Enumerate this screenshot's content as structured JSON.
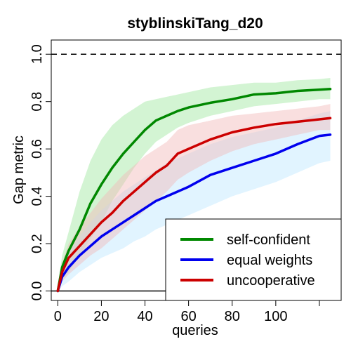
{
  "chart_data": {
    "type": "line",
    "title": "styblinskiTang_d20",
    "xlabel": "queries",
    "ylabel": "Gap metric",
    "xlim": [
      -3,
      130
    ],
    "ylim": [
      -0.04,
      1.06
    ],
    "xticks": [
      0,
      20,
      40,
      60,
      80,
      100
    ],
    "xtick_labels": [
      "0",
      "20",
      "40",
      "60",
      "80",
      "100"
    ],
    "xtick_extra_marks": [
      120
    ],
    "yticks": [
      0.0,
      0.2,
      0.4,
      0.6,
      0.8,
      1.0
    ],
    "ytick_labels": [
      "0.0",
      "0.2",
      "0.4",
      "0.6",
      "0.8",
      "1.0"
    ],
    "reference_lines": [
      {
        "y": 1.0,
        "style": "dashed",
        "color": "#000000"
      },
      {
        "y": 0.0,
        "style": "solid",
        "color": "#000000"
      }
    ],
    "legend_position": "bottom-right",
    "series": [
      {
        "name": "self-confident",
        "color": "#008800",
        "band_color": "#9ee69e",
        "x": [
          0,
          2,
          5,
          10,
          15,
          20,
          25,
          30,
          35,
          40,
          45,
          50,
          55,
          60,
          70,
          80,
          90,
          100,
          110,
          120,
          125
        ],
        "y": [
          0.0,
          0.1,
          0.17,
          0.26,
          0.37,
          0.45,
          0.52,
          0.58,
          0.63,
          0.68,
          0.72,
          0.74,
          0.76,
          0.775,
          0.795,
          0.81,
          0.83,
          0.835,
          0.845,
          0.85,
          0.853
        ],
        "lower": [
          0.0,
          0.05,
          0.08,
          0.15,
          0.22,
          0.29,
          0.38,
          0.45,
          0.52,
          0.58,
          0.63,
          0.66,
          0.69,
          0.71,
          0.74,
          0.76,
          0.78,
          0.79,
          0.8,
          0.81,
          0.81
        ],
        "upper": [
          0.02,
          0.15,
          0.25,
          0.42,
          0.55,
          0.64,
          0.7,
          0.74,
          0.77,
          0.8,
          0.81,
          0.82,
          0.83,
          0.84,
          0.86,
          0.87,
          0.88,
          0.88,
          0.89,
          0.895,
          0.9
        ]
      },
      {
        "name": "equal weights",
        "color": "#0000ee",
        "band_color": "#bde6ff",
        "x": [
          0,
          2,
          5,
          10,
          15,
          20,
          25,
          30,
          35,
          40,
          45,
          50,
          55,
          60,
          70,
          80,
          90,
          100,
          110,
          120,
          125
        ],
        "y": [
          0.0,
          0.06,
          0.1,
          0.15,
          0.19,
          0.23,
          0.26,
          0.29,
          0.32,
          0.35,
          0.38,
          0.4,
          0.42,
          0.44,
          0.49,
          0.52,
          0.55,
          0.58,
          0.62,
          0.655,
          0.66
        ],
        "lower": [
          0.0,
          0.02,
          0.04,
          0.08,
          0.11,
          0.14,
          0.16,
          0.18,
          0.21,
          0.23,
          0.26,
          0.28,
          0.3,
          0.32,
          0.36,
          0.4,
          0.43,
          0.46,
          0.5,
          0.54,
          0.55
        ],
        "upper": [
          0.02,
          0.1,
          0.16,
          0.23,
          0.29,
          0.34,
          0.38,
          0.42,
          0.45,
          0.48,
          0.51,
          0.54,
          0.56,
          0.58,
          0.62,
          0.65,
          0.67,
          0.69,
          0.72,
          0.75,
          0.76
        ]
      },
      {
        "name": "uncooperative",
        "color": "#cc0000",
        "band_color": "#f2b8b8",
        "x": [
          0,
          2,
          5,
          10,
          15,
          20,
          25,
          30,
          35,
          40,
          45,
          50,
          55,
          60,
          70,
          80,
          90,
          100,
          110,
          120,
          125
        ],
        "y": [
          0.0,
          0.08,
          0.14,
          0.19,
          0.24,
          0.29,
          0.33,
          0.38,
          0.42,
          0.46,
          0.5,
          0.53,
          0.58,
          0.6,
          0.64,
          0.67,
          0.69,
          0.705,
          0.715,
          0.725,
          0.73
        ],
        "lower": [
          0.0,
          0.04,
          0.07,
          0.11,
          0.15,
          0.18,
          0.22,
          0.26,
          0.3,
          0.34,
          0.38,
          0.42,
          0.47,
          0.5,
          0.55,
          0.59,
          0.62,
          0.64,
          0.66,
          0.68,
          0.68
        ],
        "upper": [
          0.02,
          0.12,
          0.2,
          0.27,
          0.33,
          0.39,
          0.44,
          0.49,
          0.53,
          0.57,
          0.6,
          0.63,
          0.68,
          0.7,
          0.72,
          0.74,
          0.75,
          0.76,
          0.77,
          0.78,
          0.79
        ]
      }
    ]
  }
}
